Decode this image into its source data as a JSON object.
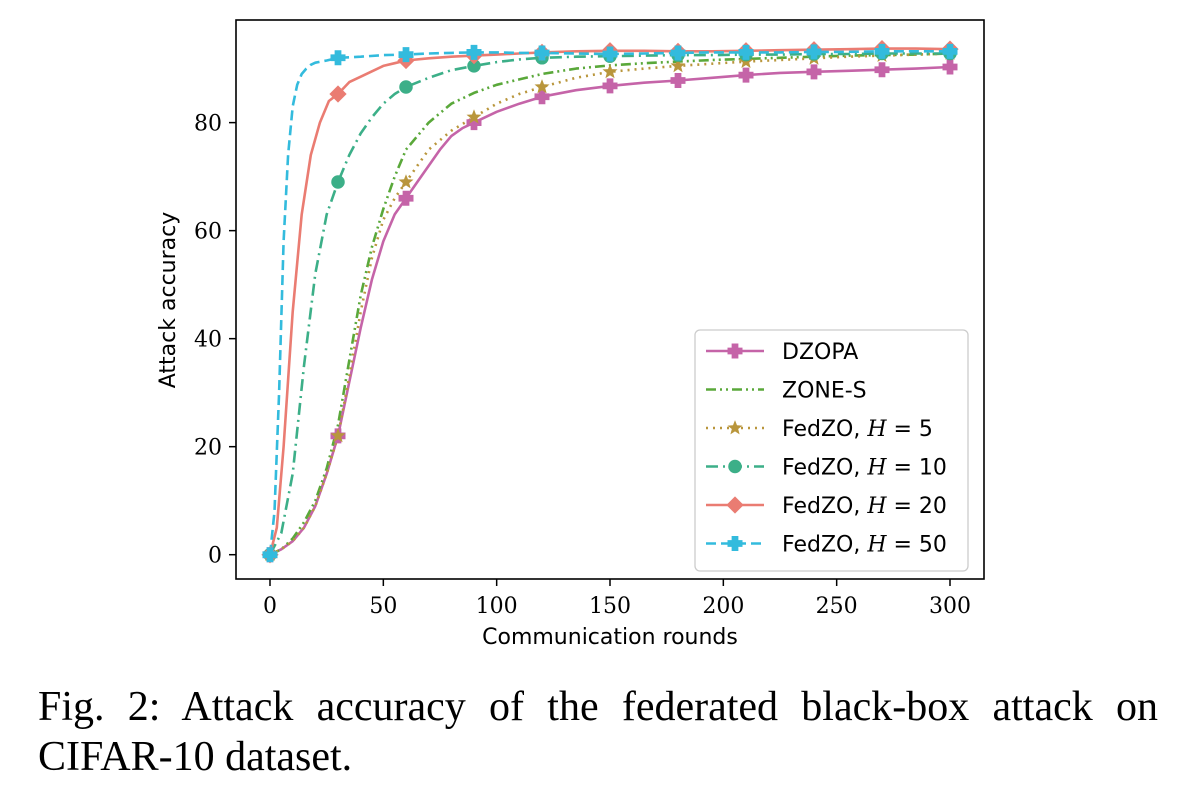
{
  "chart_data": {
    "type": "line",
    "xlabel": "Communication rounds",
    "ylabel": "Attack accuracy",
    "xlim": [
      -15,
      315
    ],
    "ylim": [
      -4.5,
      99
    ],
    "xticks": [
      0,
      50,
      100,
      150,
      200,
      250,
      300
    ],
    "yticks": [
      0,
      20,
      40,
      60,
      80
    ],
    "grid": false,
    "legend_position": "lower-right",
    "series": [
      {
        "name": "DZOPA",
        "name_parts": [
          "DZOPA"
        ],
        "color": "#c564a8",
        "line_style": "solid",
        "marker": "plus",
        "x": [
          0,
          5,
          10,
          15,
          20,
          25,
          30,
          35,
          40,
          45,
          50,
          55,
          60,
          65,
          70,
          75,
          80,
          85,
          90,
          100,
          110,
          120,
          135,
          150,
          165,
          180,
          195,
          210,
          225,
          240,
          255,
          270,
          285,
          300
        ],
        "y": [
          0,
          1,
          2.5,
          5,
          9,
          15,
          22,
          32,
          42,
          51,
          58,
          63,
          66,
          69,
          72,
          75,
          77.5,
          79,
          80,
          82,
          83.5,
          84.8,
          86,
          86.8,
          87.4,
          87.8,
          88.3,
          88.8,
          89.2,
          89.4,
          89.6,
          89.8,
          90,
          90.3
        ],
        "marker_x": [
          0,
          30,
          60,
          90,
          120,
          150,
          180,
          210,
          240,
          270,
          300
        ],
        "marker_y": [
          0,
          22,
          66,
          80,
          84.8,
          86.8,
          87.8,
          88.8,
          89.4,
          89.8,
          90.3
        ]
      },
      {
        "name": "ZONE-S",
        "name_parts": [
          "ZONE-S"
        ],
        "color": "#5aa83a",
        "line_style": "dashdotdot",
        "marker": "none",
        "x": [
          0,
          5,
          10,
          15,
          20,
          25,
          30,
          35,
          40,
          45,
          50,
          55,
          60,
          70,
          80,
          90,
          100,
          110,
          120,
          135,
          150,
          165,
          180,
          195,
          210,
          225,
          240,
          255,
          270,
          285,
          300
        ],
        "y": [
          0,
          1,
          3,
          6,
          10,
          16,
          24,
          36,
          48,
          57,
          64,
          70,
          75,
          80,
          83.5,
          85.5,
          87,
          88,
          89,
          90,
          90.6,
          91,
          91.3,
          91.6,
          91.8,
          92,
          92.2,
          92.4,
          92.5,
          92.6,
          92.8
        ],
        "marker_x": [],
        "marker_y": []
      },
      {
        "name": "FedZO, H = 5",
        "name_parts": [
          "FedZO, ",
          "H",
          " = 5"
        ],
        "color": "#b9963c",
        "line_style": "dotted",
        "marker": "star",
        "x": [
          0,
          5,
          10,
          15,
          20,
          25,
          30,
          35,
          40,
          45,
          50,
          55,
          60,
          65,
          70,
          80,
          90,
          100,
          110,
          120,
          135,
          150,
          165,
          180,
          195,
          210,
          225,
          240,
          255,
          270,
          285,
          300
        ],
        "y": [
          0,
          1,
          2.5,
          5,
          9,
          15,
          22,
          33,
          45,
          55,
          62,
          66,
          69,
          72,
          75,
          78.5,
          81,
          83.5,
          85.3,
          86.6,
          88.3,
          89.4,
          90,
          90.5,
          90.9,
          91.3,
          91.6,
          91.9,
          92.2,
          92.4,
          92.6,
          92.8
        ],
        "marker_x": [
          0,
          30,
          60,
          90,
          120,
          150,
          180,
          210,
          240,
          270,
          300
        ],
        "marker_y": [
          0,
          22,
          69,
          81,
          86.6,
          89.4,
          90.5,
          91.3,
          91.9,
          92.4,
          92.8
        ]
      },
      {
        "name": "FedZO, H = 10",
        "name_parts": [
          "FedZO, ",
          "H",
          " = 10"
        ],
        "color": "#3caf88",
        "line_style": "dashdot",
        "marker": "circle",
        "x": [
          0,
          5,
          10,
          15,
          20,
          25,
          30,
          35,
          40,
          45,
          50,
          55,
          60,
          70,
          80,
          90,
          100,
          110,
          120,
          135,
          150,
          165,
          180,
          195,
          210,
          225,
          240,
          255,
          270,
          285,
          300
        ],
        "y": [
          0,
          4,
          15,
          35,
          52,
          63,
          69,
          74,
          78,
          81,
          83.5,
          85.3,
          86.6,
          88.3,
          89.7,
          90.5,
          91.2,
          91.7,
          92,
          92.2,
          92.3,
          92.4,
          92.5,
          92.5,
          92.6,
          92.6,
          92.7,
          92.7,
          92.8,
          92.8,
          92.8
        ],
        "marker_x": [
          0,
          30,
          60,
          90,
          120,
          150,
          180,
          210,
          240,
          270,
          300
        ],
        "marker_y": [
          0,
          69,
          86.6,
          90.5,
          92,
          92.3,
          92.5,
          92.6,
          92.7,
          92.8,
          92.8
        ]
      },
      {
        "name": "FedZO, H = 20",
        "name_parts": [
          "FedZO, ",
          "H",
          " = 20"
        ],
        "color": "#ea7c72",
        "line_style": "solid",
        "marker": "diamond",
        "x": [
          0,
          3,
          6,
          10,
          14,
          18,
          22,
          26,
          30,
          35,
          40,
          45,
          50,
          55,
          60,
          70,
          80,
          90,
          100,
          110,
          120,
          135,
          150,
          165,
          180,
          195,
          210,
          225,
          240,
          255,
          270,
          285,
          300
        ],
        "y": [
          0,
          5,
          20,
          45,
          63,
          74,
          80,
          84,
          85.3,
          87.5,
          88.5,
          89.5,
          90.5,
          91,
          91.5,
          91.9,
          92.2,
          92.4,
          92.6,
          92.8,
          93,
          93.2,
          93.3,
          93.3,
          93.2,
          93.2,
          93.3,
          93.4,
          93.5,
          93.6,
          93.7,
          93.7,
          93.6
        ],
        "marker_x": [
          0,
          30,
          60,
          90,
          120,
          150,
          180,
          210,
          240,
          270,
          300
        ],
        "marker_y": [
          0,
          85.3,
          91.5,
          92.4,
          93,
          93.3,
          93.2,
          93.3,
          93.5,
          93.7,
          93.6
        ]
      },
      {
        "name": "FedZO, H = 50",
        "name_parts": [
          "FedZO, ",
          "H",
          " = 50"
        ],
        "color": "#33bbdd",
        "line_style": "dashed",
        "marker": "plus",
        "x": [
          0,
          2,
          4,
          6,
          8,
          10,
          12,
          14,
          16,
          18,
          20,
          25,
          30,
          40,
          50,
          60,
          70,
          80,
          90,
          100,
          110,
          120,
          135,
          150,
          165,
          180,
          195,
          210,
          225,
          240,
          255,
          270,
          285,
          300
        ],
        "y": [
          0,
          8,
          30,
          58,
          74,
          83,
          87,
          89,
          90,
          90.7,
          91.1,
          91.5,
          92,
          92.2,
          92.5,
          92.6,
          92.8,
          92.9,
          93,
          93,
          92.9,
          92.9,
          92.8,
          92.7,
          92.8,
          92.9,
          93,
          93,
          93,
          93.1,
          93.1,
          93.2,
          93.2,
          93.2
        ],
        "marker_x": [
          0,
          30,
          60,
          90,
          120,
          150,
          180,
          210,
          240,
          270,
          300
        ],
        "marker_y": [
          0,
          92,
          92.6,
          93,
          92.9,
          92.7,
          92.9,
          93,
          93.1,
          93.2,
          93.2
        ]
      }
    ]
  },
  "caption": "Fig. 2: Attack accuracy of the federated black-box attack on CIFAR-10 dataset."
}
